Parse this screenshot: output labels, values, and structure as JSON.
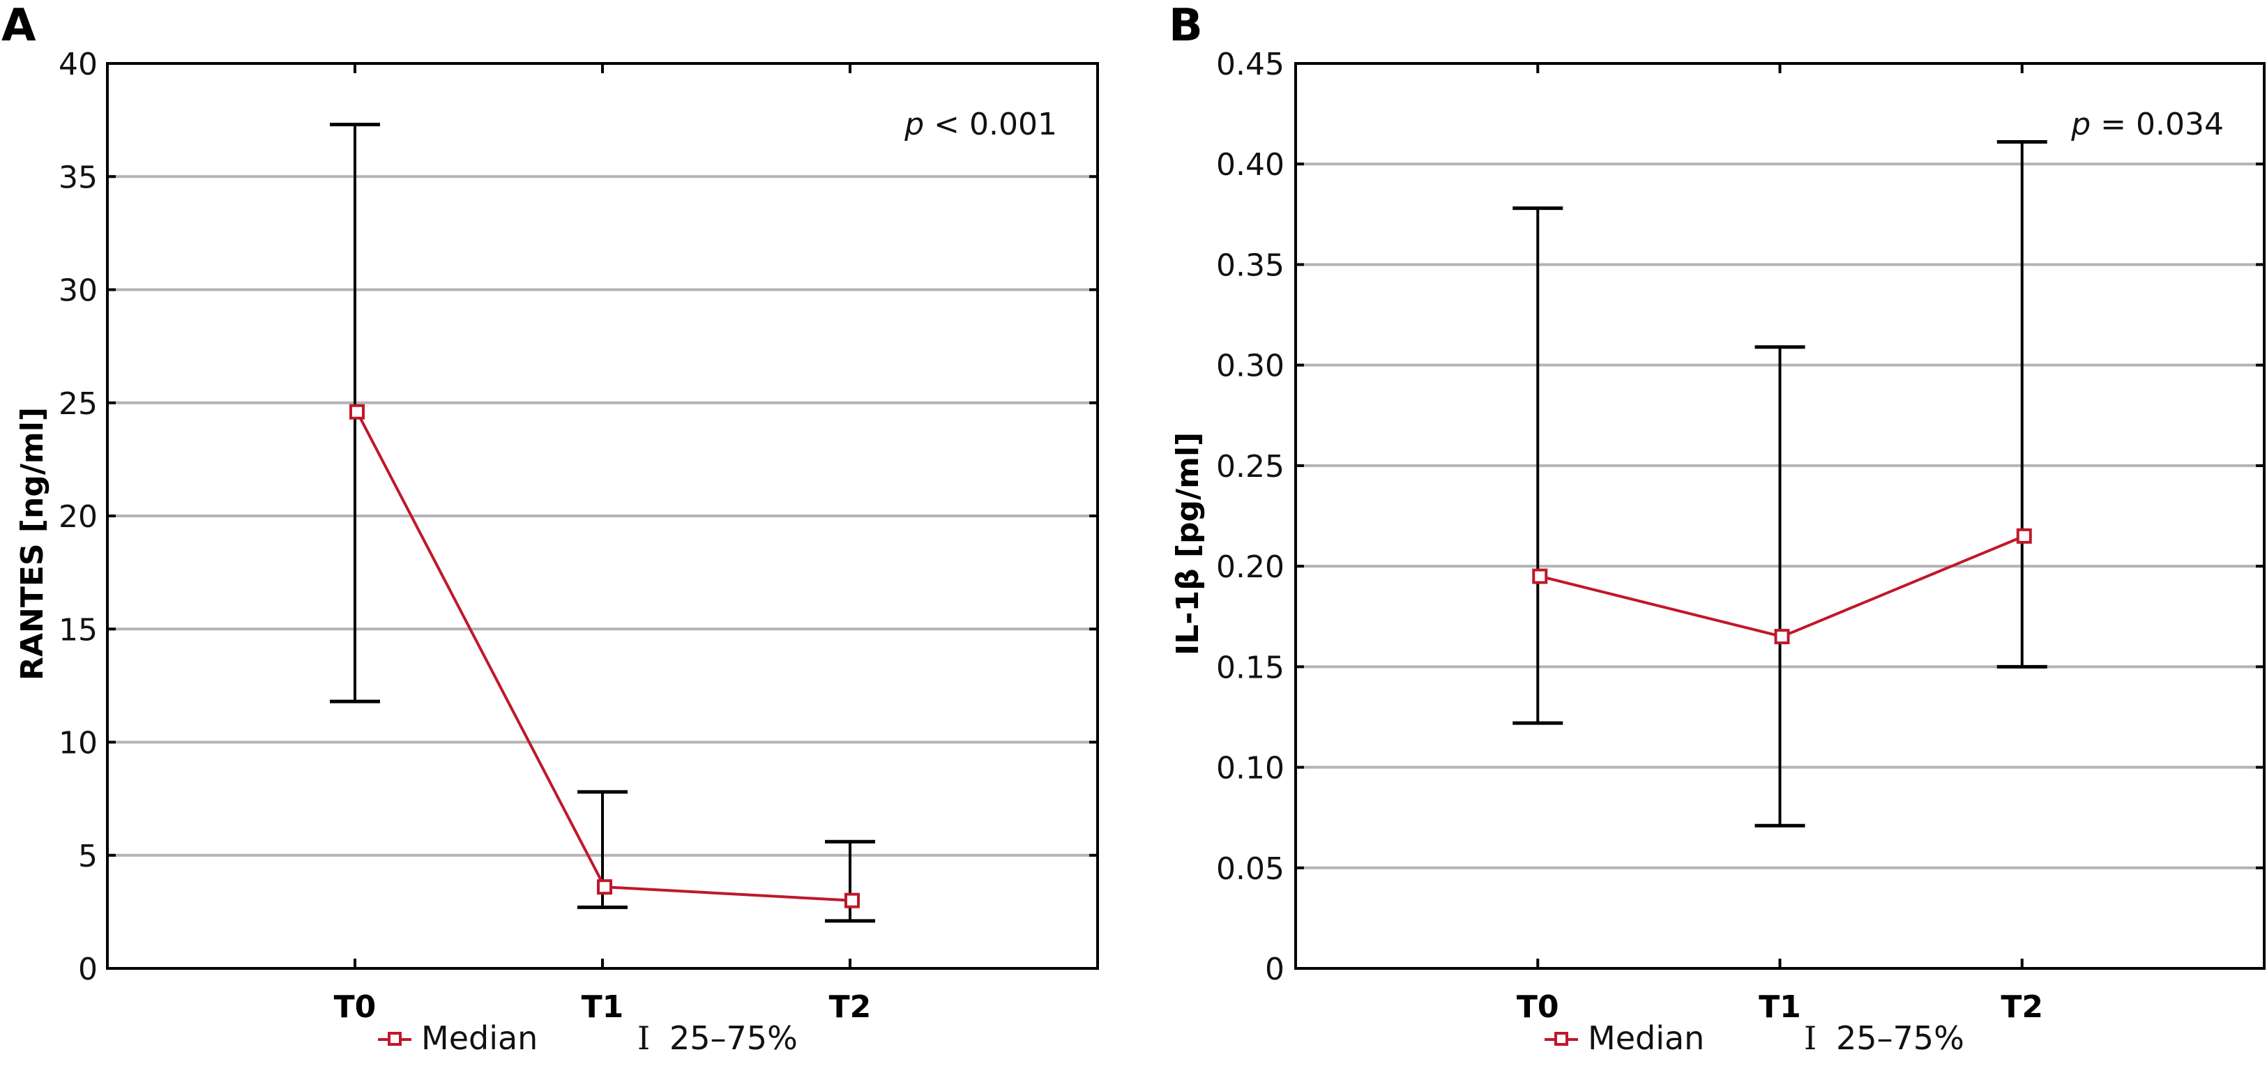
{
  "colors": {
    "median": "#c0182b",
    "whisker": "#000000",
    "grid": "#b4b4b4"
  },
  "legend": {
    "median_label": "Median",
    "range_symbol": "I",
    "range_label": "25–75%"
  },
  "chart_data": [
    {
      "panel": "A",
      "type": "line",
      "title": "",
      "xlabel": "",
      "ylabel": "RANTES [ng/ml]",
      "categories": [
        "T0",
        "T1",
        "T2"
      ],
      "ylim": [
        0,
        40
      ],
      "yticks": [
        0,
        5,
        10,
        15,
        20,
        25,
        30,
        35,
        40
      ],
      "ytick_labels": [
        "0",
        "5",
        "10",
        "15",
        "20",
        "25",
        "30",
        "35",
        "40"
      ],
      "grid": true,
      "annotation": {
        "p": "p",
        "rest": " < 0.001",
        "position": "top-right"
      },
      "legend_position": "bottom-center",
      "series": [
        {
          "name": "Median",
          "values": [
            24.6,
            3.6,
            3.0
          ]
        },
        {
          "name": "25–75%",
          "lower": [
            11.8,
            2.7,
            2.1
          ],
          "upper": [
            37.3,
            7.8,
            5.6
          ]
        }
      ]
    },
    {
      "panel": "B",
      "type": "line",
      "title": "",
      "xlabel": "",
      "ylabel": "IL-1β [pg/ml]",
      "categories": [
        "T0",
        "T1",
        "T2"
      ],
      "ylim": [
        0,
        0.45
      ],
      "yticks": [
        0,
        0.05,
        0.1,
        0.15,
        0.2,
        0.25,
        0.3,
        0.35,
        0.4,
        0.45
      ],
      "ytick_labels": [
        "0",
        "0.05",
        "0.10",
        "0.15",
        "0.20",
        "0.25",
        "0.30",
        "0.35",
        "0.40",
        "0.45"
      ],
      "grid": true,
      "annotation": {
        "p": "p",
        "rest": " = 0.034",
        "position": "top-right"
      },
      "legend_position": "bottom-center",
      "series": [
        {
          "name": "Median",
          "values": [
            0.195,
            0.165,
            0.215
          ]
        },
        {
          "name": "25–75%",
          "lower": [
            0.122,
            0.071,
            0.15
          ],
          "upper": [
            0.378,
            0.309,
            0.411
          ]
        }
      ]
    }
  ]
}
